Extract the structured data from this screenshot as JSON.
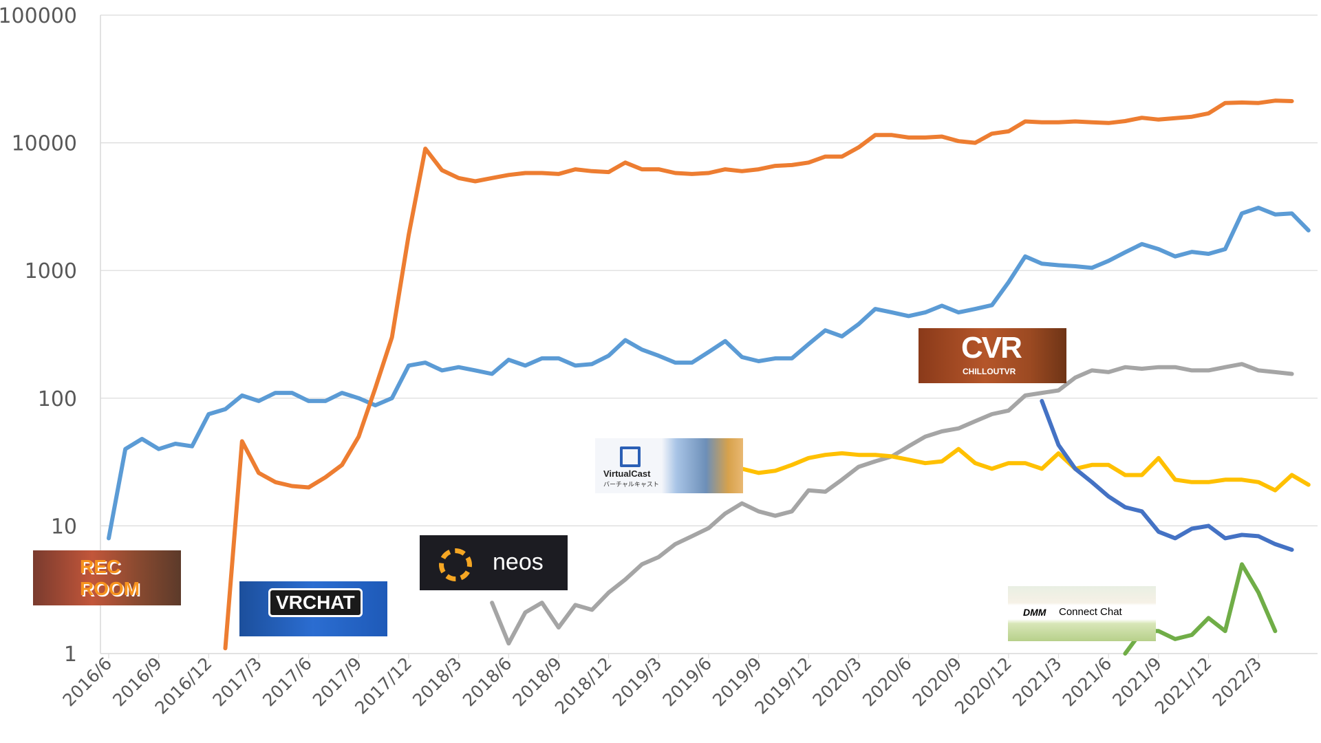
{
  "chart_data": {
    "type": "line",
    "title": "",
    "xlabel": "",
    "ylabel": "",
    "y_scale": "log",
    "ylim": [
      1,
      100000
    ],
    "y_ticks": [
      "1",
      "10",
      "100",
      "1000",
      "10000",
      "100000"
    ],
    "x_tick_labels": [
      "2016/6",
      "2016/9",
      "2016/12",
      "2017/3",
      "2017/6",
      "2017/9",
      "2017/12",
      "2018/3",
      "2018/6",
      "2018/9",
      "2018/12",
      "2019/3",
      "2019/6",
      "2019/9",
      "2019/12",
      "2020/3",
      "2020/6",
      "2020/9",
      "2020/12",
      "2021/3",
      "2021/6",
      "2021/9",
      "2021/12",
      "2022/3"
    ],
    "x_start": "2016/6",
    "x_end": "2022/5",
    "grid": true,
    "legend": "none",
    "series": [
      {
        "logo": "Rec Room",
        "color": "#5B9BD5",
        "start": "2016/6",
        "values": [
          8,
          40,
          48,
          40,
          44,
          42,
          75,
          82,
          105,
          95,
          110,
          110,
          95,
          95,
          110,
          100,
          88,
          100,
          180,
          190,
          165,
          175,
          165,
          155,
          200,
          180,
          205,
          205,
          180,
          185,
          215,
          285,
          240,
          215,
          190,
          190,
          230,
          280,
          210,
          195,
          205,
          205,
          265,
          340,
          305,
          380,
          500,
          470,
          440,
          470,
          530,
          470,
          500,
          535,
          810,
          1290,
          1130,
          1100,
          1080,
          1050,
          1190,
          1390,
          1610,
          1470,
          1290,
          1400,
          1350,
          1470,
          2800,
          3100,
          2750,
          2800,
          2060
        ]
      },
      {
        "logo": "VRChat",
        "color": "#ED7D31",
        "start": "2017/1",
        "values": [
          1.1,
          46,
          26,
          22,
          20.5,
          20,
          24,
          30,
          50,
          120,
          300,
          1900,
          9000,
          6100,
          5300,
          5000,
          5300,
          5600,
          5800,
          5800,
          5700,
          6200,
          6000,
          5900,
          7000,
          6200,
          6200,
          5800,
          5700,
          5800,
          6200,
          6000,
          6200,
          6600,
          6700,
          7000,
          7800,
          7800,
          9200,
          11500,
          11500,
          11000,
          11000,
          11200,
          10300,
          10000,
          11800,
          12300,
          14700,
          14500,
          14500,
          14700,
          14500,
          14300,
          14800,
          15700,
          15200,
          15600,
          16000,
          17000,
          20500,
          20700,
          20500,
          21400,
          21200
        ]
      },
      {
        "logo": "Neos",
        "color": "#A5A5A5",
        "start": "2018/5",
        "values": [
          2.5,
          1.2,
          2.1,
          2.5,
          1.6,
          2.4,
          2.2,
          3,
          3.8,
          5,
          5.7,
          7.2,
          8.3,
          9.6,
          12.5,
          15,
          13,
          12,
          13,
          19,
          18.5,
          23,
          29,
          32,
          35,
          42,
          50,
          55,
          58,
          66,
          75,
          80,
          105,
          110,
          115,
          145,
          165,
          160,
          175,
          170,
          175,
          175,
          165,
          165,
          175,
          185,
          165,
          160,
          155
        ]
      },
      {
        "logo": "VirtualCast",
        "color": "#FFC000",
        "start": "2019/8",
        "values": [
          28,
          26,
          27,
          30,
          34,
          36,
          37,
          36,
          36,
          35,
          33,
          31,
          32,
          40,
          31,
          28,
          31,
          31,
          28,
          37,
          28,
          30,
          30,
          25,
          25,
          34,
          23,
          22,
          22,
          23,
          23,
          22,
          19,
          25,
          21
        ]
      },
      {
        "logo": "ChilloutVR",
        "color": "#4472C4",
        "start": "2021/2",
        "values": [
          95,
          43,
          28,
          22,
          17,
          14,
          13,
          9,
          8,
          9.5,
          10,
          8,
          8.5,
          8.3,
          7.2,
          6.5
        ]
      },
      {
        "logo": "DMM Connect Chat",
        "color": "#70AD47",
        "start": "2021/7",
        "values": [
          1,
          1.5,
          1.5,
          1.3,
          1.4,
          1.9,
          1.5,
          5,
          3,
          1.5
        ]
      }
    ]
  },
  "logos": {
    "recroom": {
      "line1": "REC",
      "line2": "ROOM"
    },
    "vrchat": {
      "text": "VRCHAT"
    },
    "neos": {
      "text": "neos"
    },
    "virtualcast": {
      "text": "VirtualCast",
      "sub": "バーチャルキャスト"
    },
    "chilloutvr": {
      "text": "CVR",
      "sub": "CHILLOUTVR"
    },
    "dmm": {
      "text": "DMM",
      "sub": "Connect Chat"
    }
  }
}
